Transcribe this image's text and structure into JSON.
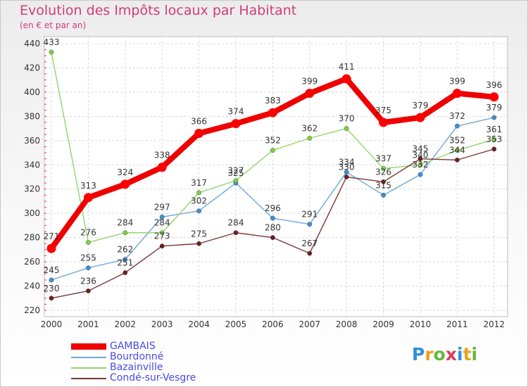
{
  "title": "Evolution des Impôts locaux par Habitant",
  "subtitle": "(en € et par an)",
  "logo": {
    "text": "Proxiti",
    "colors": [
      "#2f8fdc",
      "#e8a21d",
      "#63b83a",
      "#e03a5a",
      "#2f8fdc",
      "#e8a21d",
      "#63b83a"
    ]
  },
  "chart_data": {
    "type": "line",
    "title": "Evolution des Impôts locaux par Habitant",
    "ylabel": "(en € et par an)",
    "xlabel": "",
    "x": [
      "2000",
      "2001",
      "2002",
      "2003",
      "2004",
      "2005",
      "2006",
      "2007",
      "2008",
      "2009",
      "2010",
      "2011",
      "2012"
    ],
    "ylim": [
      220,
      440
    ],
    "yticks": [
      220,
      240,
      260,
      280,
      300,
      320,
      340,
      360,
      380,
      400,
      420,
      440
    ],
    "grid": true,
    "legend": "bottom-left",
    "series": [
      {
        "name": "GAMBAIS",
        "color": "#ff0000",
        "line_color": "#ee0000",
        "values": [
          271,
          313,
          324,
          338,
          366,
          374,
          383,
          399,
          411,
          375,
          379,
          399,
          396
        ]
      },
      {
        "name": "Bourdonné",
        "color": "#3f8fcf",
        "line_color": "#6ea7d8",
        "values": [
          245,
          255,
          262,
          297,
          302,
          325,
          296,
          291,
          334,
          315,
          332,
          372,
          379
        ]
      },
      {
        "name": "Bazainville",
        "color": "#7cd23c",
        "line_color": "#93d56a",
        "values": [
          433,
          276,
          284,
          284,
          317,
          327,
          352,
          362,
          370,
          337,
          340,
          352,
          361
        ]
      },
      {
        "name": "Condé-sur-Vesgre",
        "color": "#6b1f1f",
        "line_color": "#7a3636",
        "values": [
          230,
          236,
          251,
          273,
          275,
          284,
          280,
          267,
          330,
          326,
          345,
          344,
          353
        ]
      }
    ]
  }
}
